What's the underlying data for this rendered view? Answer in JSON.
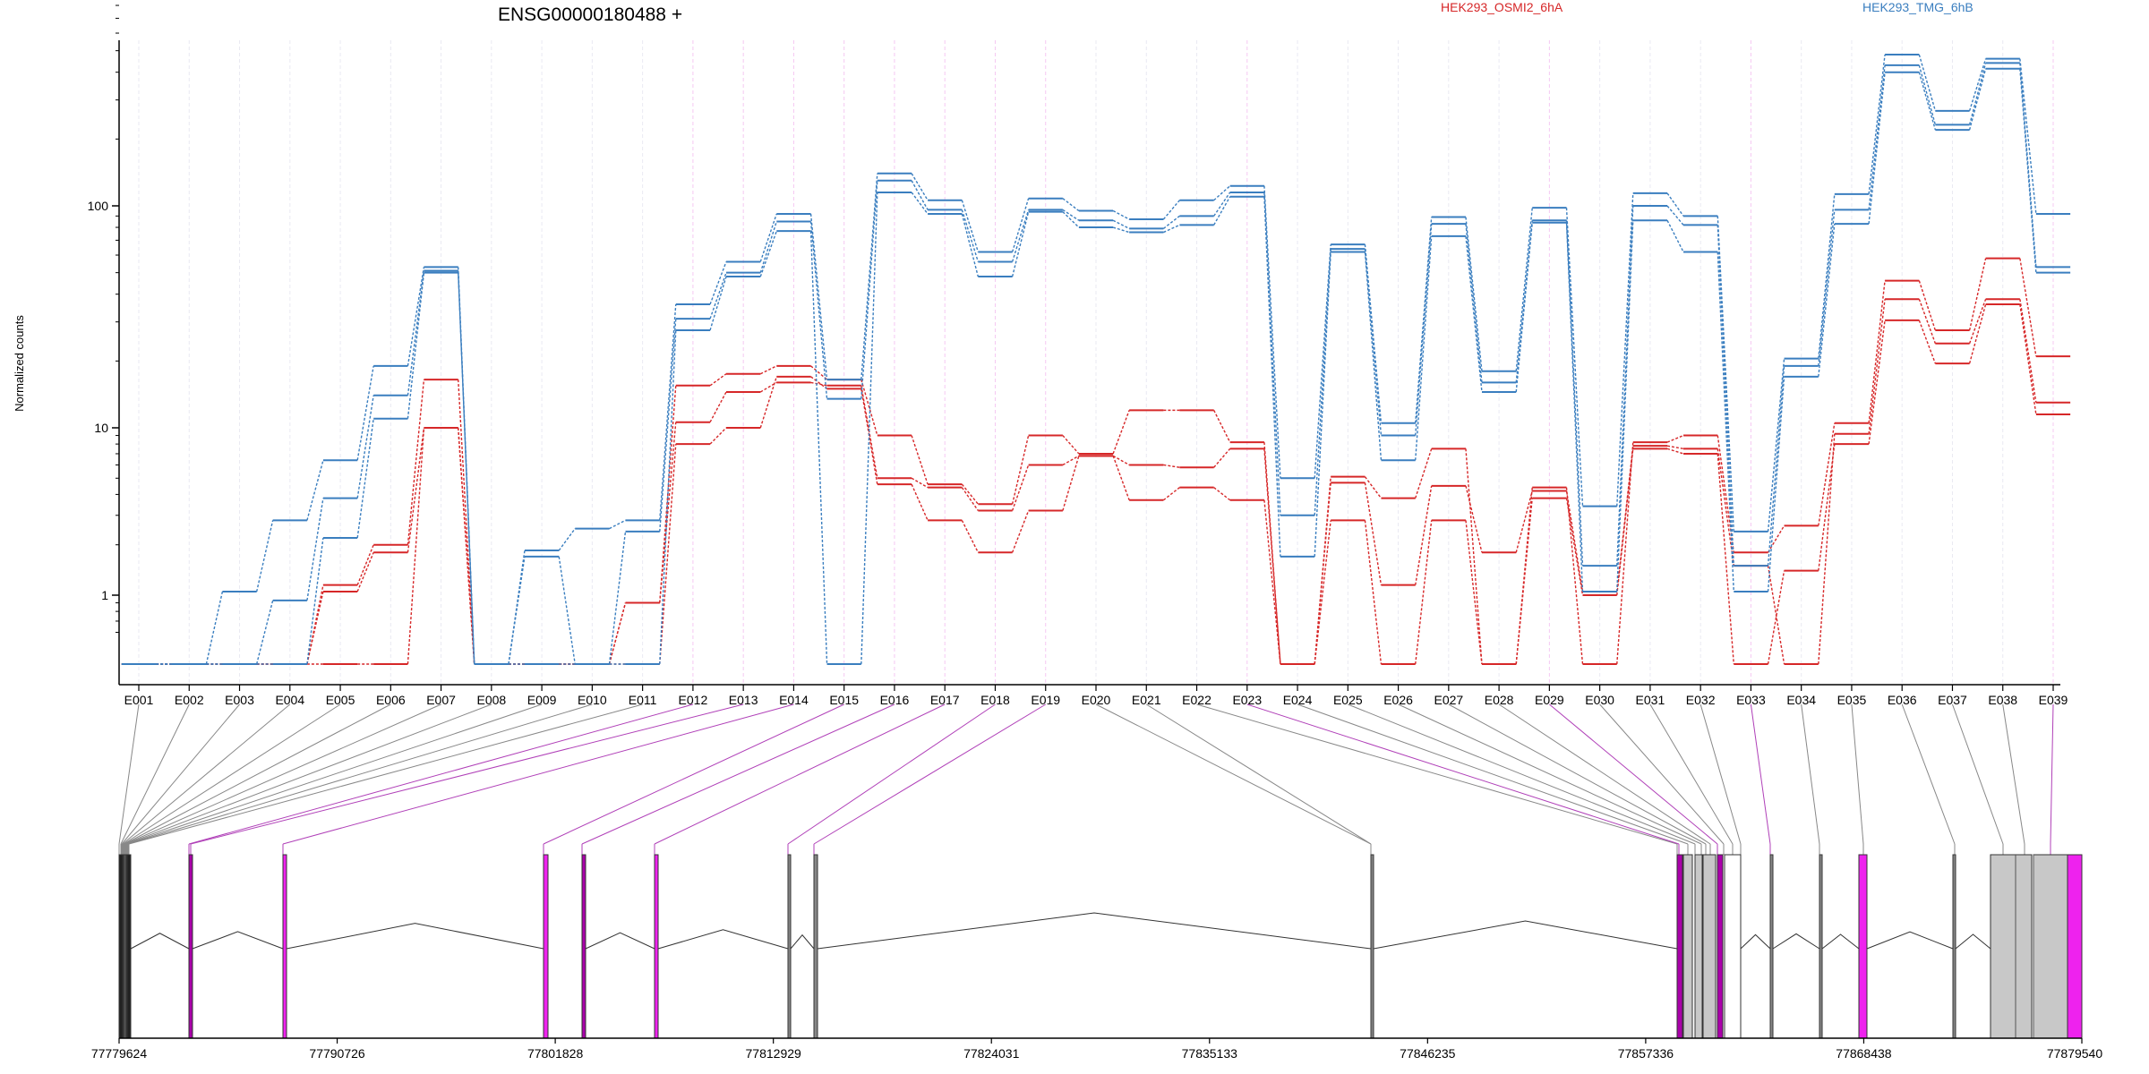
{
  "chart_data": {
    "type": "line",
    "title": "ENSG00000180488 +",
    "ylabel": "Normalized counts",
    "yscale": "log",
    "ylim": [
      0.4,
      700
    ],
    "yticks": [
      1,
      10,
      100
    ],
    "grid": false,
    "legend_position": "top",
    "colors": {
      "HEK293_OSMI2_6hA": "#d62728",
      "HEK293_TMG_6hB": "#3a7ebf"
    },
    "legend": [
      "HEK293_OSMI2_6hA",
      "HEK293_TMG_6hB"
    ],
    "exon_flags": [
      0,
      0,
      0,
      0,
      0,
      0,
      0,
      0,
      0,
      0,
      0,
      1,
      1,
      1,
      1,
      1,
      1,
      1,
      1,
      0,
      0,
      0,
      1,
      0,
      0,
      0,
      0,
      0,
      1,
      0,
      0,
      0,
      1,
      0,
      0,
      0,
      0,
      0,
      1
    ],
    "categories": [
      "E001",
      "E002",
      "E003",
      "E004",
      "E005",
      "E006",
      "E007",
      "E008",
      "E009",
      "E010",
      "E011",
      "E012",
      "E013",
      "E014",
      "E015",
      "E016",
      "E017",
      "E018",
      "E019",
      "E020",
      "E021",
      "E022",
      "E023",
      "E024",
      "E025",
      "E026",
      "E027",
      "E028",
      "E029",
      "E030",
      "E031",
      "E032",
      "E033",
      "E034",
      "E035",
      "E036",
      "E037",
      "E038",
      "E039"
    ],
    "series": [
      {
        "group": "HEK293_OSMI2_6hA",
        "values": [
          0.45,
          0.45,
          0.45,
          0.45,
          1.15,
          2.0,
          16.5,
          0.45,
          0.45,
          0.45,
          0.9,
          15.5,
          17.5,
          19.0,
          16.5,
          9.0,
          4.6,
          3.5,
          9.0,
          7.0,
          12.0,
          12.0,
          8.2,
          0.45,
          5.1,
          3.8,
          7.5,
          0.45,
          4.4,
          0.45,
          8.2,
          9.0,
          1.8,
          2.6,
          10.5,
          46.0,
          27.5,
          58.0,
          21.0
        ]
      },
      {
        "group": "HEK293_OSMI2_6hA",
        "values": [
          0.45,
          0.45,
          0.45,
          0.45,
          1.05,
          1.8,
          10.0,
          0.45,
          0.45,
          0.45,
          0.9,
          10.6,
          14.5,
          16.0,
          15.5,
          5.0,
          4.4,
          3.2,
          6.0,
          6.8,
          6.0,
          5.8,
          7.5,
          0.45,
          4.7,
          1.15,
          4.5,
          1.8,
          4.2,
          1.05,
          7.8,
          7.5,
          1.5,
          0.45,
          9.2,
          38.0,
          24.0,
          38.0,
          13.0
        ]
      },
      {
        "group": "HEK293_OSMI2_6hA",
        "values": [
          0.45,
          0.45,
          0.45,
          0.45,
          0.45,
          0.45,
          10.0,
          0.45,
          0.45,
          0.45,
          0.45,
          8.0,
          10.0,
          17.0,
          15.0,
          4.6,
          2.8,
          1.8,
          3.2,
          6.8,
          3.7,
          4.4,
          3.7,
          0.45,
          2.8,
          0.45,
          2.8,
          0.45,
          3.8,
          1.0,
          7.5,
          7.0,
          0.45,
          1.4,
          8.0,
          30.5,
          19.5,
          36.0,
          11.5
        ]
      },
      {
        "group": "HEK293_TMG_6hB",
        "values": [
          0.45,
          0.45,
          1.05,
          2.8,
          6.4,
          19.0,
          53.0,
          0.45,
          1.85,
          2.5,
          2.8,
          36.0,
          56.0,
          92.0,
          16.5,
          140.0,
          106.0,
          62.0,
          108.0,
          95.0,
          87.0,
          106.0,
          123.0,
          5.0,
          67.0,
          10.5,
          89.0,
          18.0,
          98.0,
          3.4,
          114.0,
          90.0,
          2.4,
          20.5,
          113.0,
          480.0,
          268.0,
          460.0,
          92.0
        ]
      },
      {
        "group": "HEK293_TMG_6hB",
        "values": [
          0.45,
          0.45,
          0.45,
          0.93,
          3.8,
          14.0,
          51.0,
          0.45,
          1.7,
          0.45,
          2.4,
          31.0,
          50.0,
          85.0,
          13.5,
          130.0,
          96.0,
          56.0,
          96.0,
          86.0,
          79.0,
          90.0,
          115.0,
          3.0,
          64.0,
          9.0,
          83.0,
          16.0,
          86.0,
          1.5,
          100.0,
          82.0,
          1.5,
          19.0,
          96.0,
          430.0,
          232.0,
          440.0,
          53.0
        ]
      },
      {
        "group": "HEK293_TMG_6hB",
        "values": [
          0.45,
          0.45,
          0.45,
          0.45,
          2.2,
          11.0,
          50.0,
          0.45,
          0.45,
          0.45,
          0.45,
          27.5,
          48.0,
          77.0,
          0.45,
          115.0,
          92.0,
          48.0,
          94.0,
          80.0,
          76.0,
          82.0,
          110.0,
          1.7,
          62.0,
          6.4,
          73.0,
          14.5,
          84.0,
          1.05,
          86.0,
          62.0,
          1.05,
          17.0,
          83.0,
          400.0,
          220.0,
          415.0,
          50.0
        ]
      }
    ],
    "genomic_axis_labels": [
      "77779624",
      "77790726",
      "77801828",
      "77812929",
      "77824031",
      "77835133",
      "77846235",
      "77857336",
      "77868438",
      "77879540"
    ]
  }
}
